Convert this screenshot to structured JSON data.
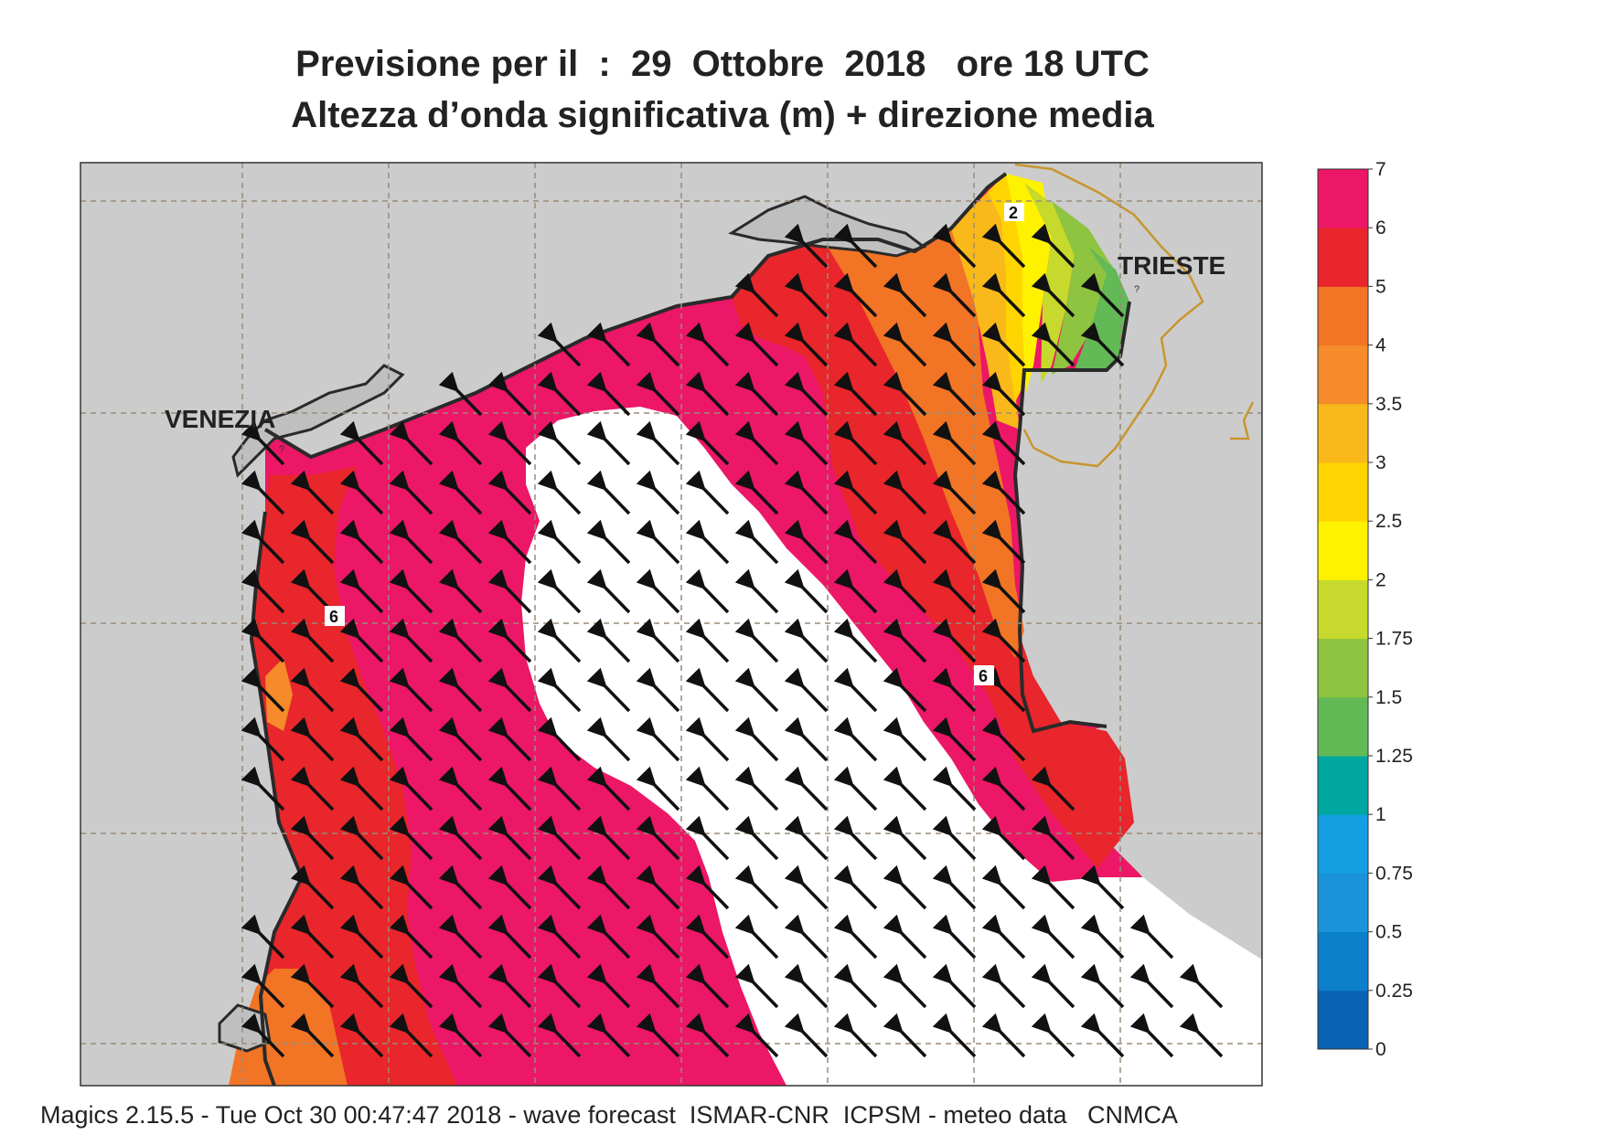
{
  "title_line1": "Previsione per il  :  29  Ottobre  2018   ore 18 UTC",
  "title_line2": "Altezza d’onda significativa (m) + direzione media",
  "cities": {
    "venezia": "VENEZIA",
    "trieste": "TRIESTE"
  },
  "contour_labels": [
    "2",
    "6",
    "6"
  ],
  "unknown_marks": [
    "?",
    "?"
  ],
  "legend": {
    "ticks": [
      "0",
      "0.25",
      "0.5",
      "0.75",
      "1",
      "1.25",
      "1.5",
      "1.75",
      "2",
      "2.5",
      "3",
      "3.5",
      "4",
      "5",
      "6",
      "7"
    ],
    "colors": [
      "#0a62b5",
      "#0c7fcb",
      "#1a93db",
      "#159fe3",
      "#00a7a0",
      "#63b955",
      "#8ec43f",
      "#c6d92c",
      "#fff200",
      "#ffd400",
      "#f9b91a",
      "#f58b2a",
      "#f27425",
      "#e8262b",
      "#ec1766"
    ]
  },
  "footer": "Magics 2.15.5 - Tue Oct 30 00:47:47 2018 - wave forecast  ISMAR-CNR  ICPSM - meteo data   CNMCA",
  "colors": {
    "land": "#cccccc",
    "coast": "#2a2a2a",
    "grid": "#9a8c78",
    "border": "#c8962e",
    "arrow": "#111111"
  }
}
